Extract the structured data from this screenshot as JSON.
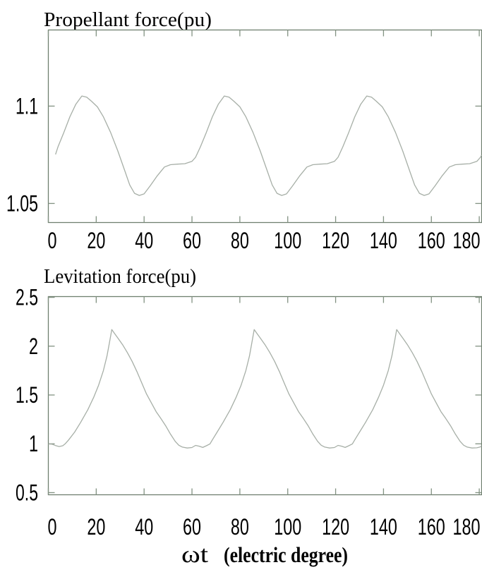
{
  "figure": {
    "background": "#ffffff",
    "axis_color": "#6f7f6f",
    "tick_color": "#829282",
    "curve_color": "#a7afa7",
    "text_color": "#000000"
  },
  "xlabel": {
    "symbol": "ωt",
    "unit": "(electric degree)"
  },
  "chart_data": [
    {
      "type": "line",
      "title": "Propellant force(pu)",
      "xlabel": "",
      "ylabel": "",
      "grid": false,
      "legend": "none",
      "xlim": [
        0,
        181
      ],
      "ylim": [
        1.0402,
        1.1391
      ],
      "xticks": [
        0,
        20,
        40,
        60,
        80,
        100,
        120,
        140,
        160,
        180
      ],
      "xtick_labels": [
        "0",
        "20",
        "40",
        "60",
        "80",
        "100",
        "120",
        "140",
        "160",
        "180"
      ],
      "yticks": [
        1.05,
        1.1
      ],
      "ytick_labels": [
        "1.05",
        "1.1"
      ],
      "series": [
        {
          "name": "propellant-force",
          "x": [
            3,
            4,
            6.5,
            9,
            11.5,
            14,
            16,
            18,
            20.5,
            23,
            26,
            29,
            32,
            34,
            36,
            38,
            40,
            42.5,
            45.5,
            48.5,
            51,
            54,
            57,
            60,
            61.5,
            63.5,
            66,
            68.5,
            71,
            73.5,
            75.5,
            77.5,
            80,
            82.5,
            85.5,
            88.5,
            91.5,
            93.5,
            95.5,
            97.5,
            99.5,
            102,
            105,
            108,
            110.5,
            113.5,
            116.5,
            119.5,
            121,
            123,
            125.5,
            128,
            130.5,
            133,
            135,
            137,
            139.5,
            142,
            145,
            148,
            151,
            153,
            155,
            157,
            159,
            161.5,
            164.5,
            167.5,
            170,
            173,
            176,
            179,
            180.5,
            181
          ],
          "y": [
            1.0752,
            1.079,
            1.0865,
            1.0945,
            1.101,
            1.1052,
            1.1046,
            1.1025,
            1.0996,
            1.0945,
            1.0865,
            1.077,
            1.0665,
            1.0595,
            1.0552,
            1.0541,
            1.0549,
            1.059,
            1.0642,
            1.0687,
            1.0699,
            1.0702,
            1.0704,
            1.0716,
            1.0737,
            1.079,
            1.0865,
            1.0945,
            1.101,
            1.1052,
            1.1046,
            1.1025,
            1.0996,
            1.0945,
            1.0865,
            1.077,
            1.0665,
            1.0595,
            1.0552,
            1.0541,
            1.0549,
            1.059,
            1.0642,
            1.0687,
            1.0699,
            1.0702,
            1.0704,
            1.0716,
            1.0737,
            1.079,
            1.0865,
            1.0945,
            1.101,
            1.1052,
            1.1046,
            1.1025,
            1.0996,
            1.0945,
            1.0865,
            1.077,
            1.0665,
            1.0595,
            1.0552,
            1.0541,
            1.0549,
            1.059,
            1.0642,
            1.0687,
            1.0699,
            1.0702,
            1.0704,
            1.0716,
            1.0737,
            1.0748
          ]
        }
      ]
    },
    {
      "type": "line",
      "title": "Levitation force(pu)",
      "xlabel": "ωt (electric degree)",
      "ylabel": "",
      "grid": false,
      "legend": "none",
      "xlim": [
        0,
        181
      ],
      "ylim": [
        0.478,
        2.508
      ],
      "xticks": [
        0,
        20,
        40,
        60,
        80,
        100,
        120,
        140,
        160,
        180
      ],
      "xtick_labels": [
        "0",
        "20",
        "40",
        "60",
        "80",
        "100",
        "120",
        "140",
        "160",
        "180"
      ],
      "yticks": [
        0.5,
        1,
        1.5,
        2,
        2.5
      ],
      "ytick_labels": [
        "0.5",
        "1",
        "1.5",
        "2",
        "2.5"
      ],
      "series": [
        {
          "name": "levitation-force",
          "x": [
            0,
            1.5,
            3,
            4.5,
            6,
            7,
            8.5,
            11,
            13.5,
            16.5,
            19,
            21,
            23,
            24.5,
            25.7,
            26.5,
            27.8,
            29,
            31,
            33,
            35,
            37,
            39,
            41,
            43,
            45,
            47,
            49,
            51,
            53,
            54.5,
            56,
            58,
            60,
            61.5,
            63,
            64.5,
            66,
            67.5,
            68.5,
            70.5,
            73,
            76,
            78.5,
            80.5,
            82.5,
            84,
            85.2,
            86,
            87.3,
            88.5,
            90.5,
            92.5,
            94.5,
            96.5,
            98.5,
            100.5,
            102.5,
            104.5,
            106.5,
            108.5,
            110.5,
            112.5,
            114,
            115.5,
            117.5,
            119.5,
            121,
            122.5,
            124,
            125.5,
            127,
            128,
            130,
            132.5,
            135.5,
            138,
            140,
            142,
            143.5,
            144.7,
            145.5,
            146.8,
            148,
            150,
            152,
            154,
            156,
            158,
            160,
            162,
            164,
            166,
            168,
            170,
            172,
            173.5,
            175,
            177,
            179,
            180.2,
            181
          ],
          "y": [
            0.998,
            0.996,
            0.982,
            0.972,
            0.98,
            0.999,
            1.04,
            1.12,
            1.22,
            1.35,
            1.48,
            1.6,
            1.75,
            1.9,
            2.06,
            2.17,
            2.125,
            2.085,
            2.015,
            1.935,
            1.845,
            1.74,
            1.625,
            1.51,
            1.42,
            1.33,
            1.26,
            1.185,
            1.1,
            1.025,
            0.985,
            0.966,
            0.957,
            0.962,
            0.984,
            0.976,
            0.963,
            0.98,
            0.999,
            1.04,
            1.12,
            1.22,
            1.35,
            1.48,
            1.6,
            1.75,
            1.9,
            2.06,
            2.17,
            2.125,
            2.085,
            2.015,
            1.935,
            1.845,
            1.74,
            1.625,
            1.51,
            1.42,
            1.33,
            1.26,
            1.185,
            1.1,
            1.025,
            0.985,
            0.966,
            0.957,
            0.962,
            0.984,
            0.976,
            0.963,
            0.98,
            0.999,
            1.04,
            1.12,
            1.22,
            1.35,
            1.48,
            1.6,
            1.75,
            1.9,
            2.06,
            2.17,
            2.125,
            2.085,
            2.015,
            1.935,
            1.845,
            1.74,
            1.625,
            1.51,
            1.42,
            1.33,
            1.26,
            1.185,
            1.1,
            1.025,
            0.985,
            0.966,
            0.957,
            0.959,
            0.966,
            0.977
          ]
        }
      ]
    }
  ]
}
